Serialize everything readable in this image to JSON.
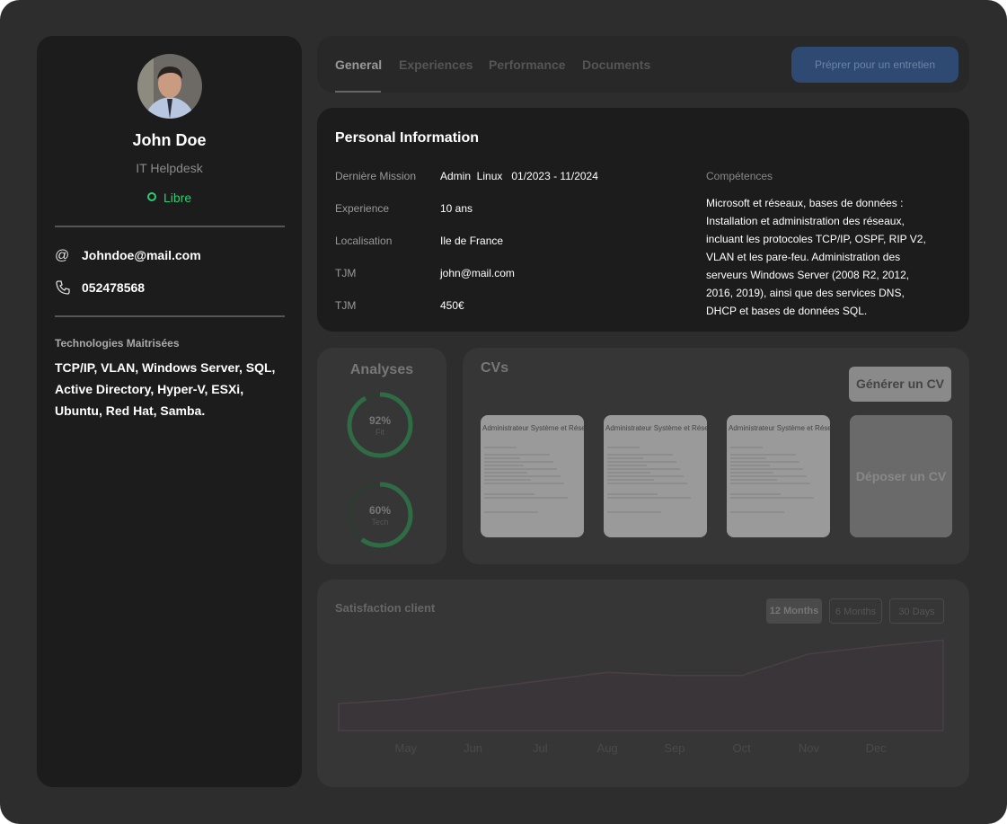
{
  "profile": {
    "name": "John Doe",
    "role": "IT Helpdesk",
    "status": "Libre",
    "email": "Johndoe@mail.com",
    "phone": "052478568",
    "technologies_label": "Technologies Maitrisées",
    "technologies": "TCP/IP, VLAN, Windows Server, SQL, Active Directory, Hyper-V, ESXi, Ubuntu, Red Hat, Samba."
  },
  "tabs": [
    "General",
    "Experiences",
    "Performance",
    "Documents"
  ],
  "action_button": "Préprer pour un entretien",
  "personal_information": {
    "title": "Personal Information",
    "rows": [
      [
        "Dernière Mission",
        "Admin  Linux   01/2023 - 11/2024"
      ],
      [
        "Experience",
        "10 ans"
      ],
      [
        "Localisation",
        "Ile de France"
      ],
      [
        "TJM",
        "john@mail.com"
      ],
      [
        "TJM",
        "450€"
      ]
    ],
    "skills_label": "Compétences",
    "skills": "Microsoft et réseaux, bases de données : Installation et administration des réseaux, incluant les protocoles TCP/IP, OSPF, RIP V2, VLAN et les pare-feu. Administration des serveurs Windows Server (2008 R2, 2012, 2016, 2019), ainsi que des services DNS, DHCP et bases de données SQL."
  },
  "analyses": {
    "title": "Analyses",
    "items": [
      {
        "value": 92,
        "label": "92%",
        "caption": "Fit"
      },
      {
        "value": 60,
        "label": "60%",
        "caption": "Tech"
      }
    ]
  },
  "cvs": {
    "title": "CVs",
    "generate_button": "Générer un CV",
    "upload": "Déposer un CV",
    "documents": [
      "Administrateur Système et Réseau",
      "Administrateur Système et Réseau",
      "Administrateur Système et Réseau"
    ]
  },
  "satisfaction": {
    "title": "Satisfaction client",
    "filters": [
      "12 Months",
      "6 Months",
      "30 Days"
    ],
    "chart_data": {
      "type": "area",
      "categories": [
        null,
        "May",
        "Jun",
        "Jul",
        "Aug",
        "Sep",
        "Oct",
        "Nov",
        "Dec",
        null
      ],
      "values": [
        25,
        29,
        38,
        46,
        54,
        51,
        51,
        71,
        78,
        84
      ],
      "color": "#3a3538",
      "ylim": [
        0,
        100
      ]
    }
  }
}
